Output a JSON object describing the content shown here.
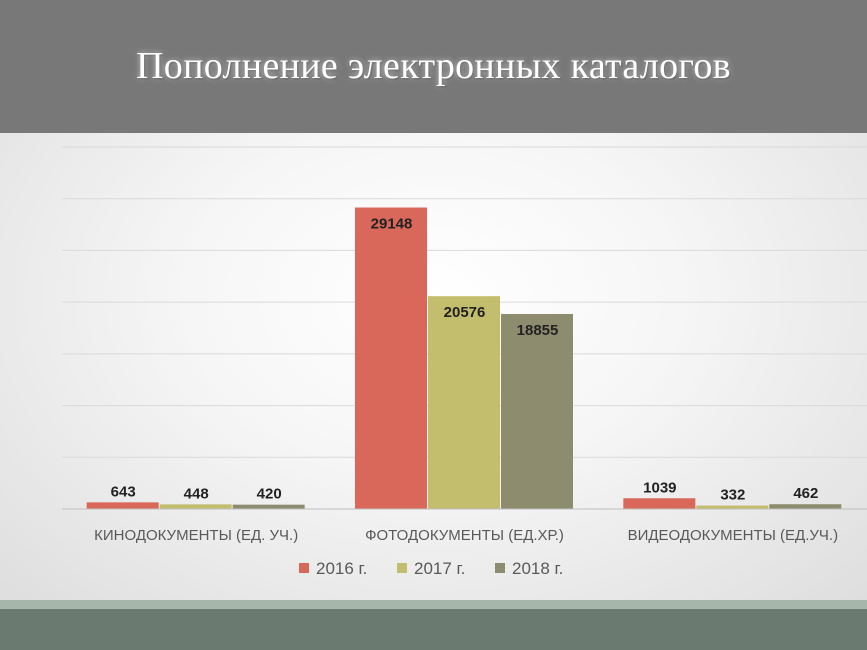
{
  "slide": {
    "title": "Пополнение электронных каталогов"
  },
  "chart_data": {
    "type": "bar",
    "categories": [
      "КИНОДОКУМЕНТЫ (ЕД. УЧ.)",
      "ФОТОДОКУМЕНТЫ (ЕД.ХР.)",
      "ВИДЕОДОКУМЕНТЫ (ЕД.УЧ.)"
    ],
    "series": [
      {
        "name": "2016 г.",
        "values": [
          643,
          29148,
          1039
        ],
        "color": "#d9685a"
      },
      {
        "name": "2017 г.",
        "values": [
          448,
          20576,
          332
        ],
        "color": "#c3bd6e"
      },
      {
        "name": "2018 г.",
        "values": [
          420,
          18855,
          462
        ],
        "color": "#8e8c6e"
      }
    ],
    "ylim": [
      0,
      35000
    ],
    "gridlines": true,
    "data_labels": true,
    "legend_position": "bottom",
    "title": "",
    "xlabel": "",
    "ylabel": ""
  },
  "colors": {
    "header_bg": "#787878",
    "footer_band": "#6b7a70",
    "footer_band_light": "#a7b6ab"
  }
}
